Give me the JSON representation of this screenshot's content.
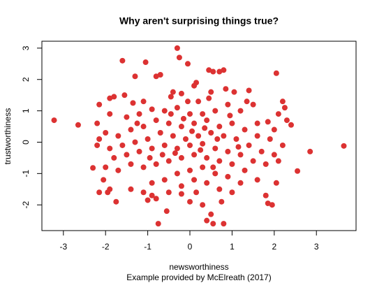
{
  "chart_data": {
    "type": "scatter",
    "title": "Why aren't surprising things true?",
    "xlabel": "newsworthiness",
    "ylabel": "trustworthiness",
    "subtitle": "Example provided by McElreath (2017)",
    "color": "#dc3232",
    "xlim": [
      -3.51,
      3.94
    ],
    "ylim": [
      -2.82,
      3.22
    ],
    "xticks": [
      -3,
      -2,
      -1,
      0,
      1,
      2,
      3
    ],
    "yticks": [
      -2,
      -1,
      0,
      1,
      2,
      3
    ],
    "x": [
      -3.22,
      -2.65,
      3.65,
      2.85,
      2.55,
      -2.3,
      -0.3,
      -0.25,
      -0.05,
      -1.6,
      -1.05,
      0.45,
      0.8,
      0.7,
      2.05,
      0.55,
      -0.7,
      -0.8,
      -1.3,
      -1.8,
      -1.9,
      -1.55,
      -1.1,
      -0.4,
      -0.2,
      0.1,
      0.15,
      0.5,
      0.85,
      1.4,
      1.05,
      2.2,
      2.25,
      2.3,
      2.4,
      2.0,
      1.85,
      1.6,
      1.5,
      1.2,
      0.9,
      0.6,
      0.3,
      0.0,
      -0.3,
      -0.6,
      -0.9,
      -1.2,
      -1.5,
      -1.9,
      -2.15,
      -2.2,
      -2.0,
      -1.7,
      -1.4,
      -1.1,
      -0.8,
      -0.5,
      -0.2,
      0.1,
      0.4,
      0.7,
      1.0,
      1.3,
      1.6,
      1.9,
      2.2,
      2.0,
      1.7,
      1.4,
      1.1,
      0.8,
      0.5,
      0.2,
      -0.1,
      -0.4,
      -0.7,
      -1.0,
      -1.3,
      -1.6,
      -1.9,
      -2.2,
      -2.15,
      -1.8,
      -1.5,
      -1.2,
      -0.9,
      -0.6,
      -0.3,
      0.0,
      0.3,
      0.6,
      0.9,
      1.2,
      1.5,
      1.8,
      2.1,
      2.05,
      1.8,
      1.85,
      1.95,
      1.6,
      1.3,
      1.0,
      0.7,
      0.4,
      0.1,
      -0.2,
      -0.5,
      -0.8,
      -1.1,
      -1.4,
      -1.7,
      -2.0,
      -2.05,
      -1.9,
      -1.75,
      -2.15,
      -1.95,
      -1.4,
      -1.1,
      -0.9,
      -0.6,
      -0.3,
      0.0,
      0.3,
      0.6,
      0.9,
      1.2,
      1.0,
      0.7,
      0.4,
      0.1,
      -0.2,
      -0.5,
      -0.8,
      -1.0,
      -0.9,
      -0.55,
      -0.75,
      0.0,
      0.3,
      0.5,
      0.55,
      0.8,
      0.4,
      0.75,
      -0.2,
      0.15,
      0.2,
      0.45,
      -0.05,
      -0.45,
      0.65,
      -0.15,
      0.25,
      -0.35,
      0.05,
      0.35,
      -0.65,
      1.15,
      -1.25,
      0.95,
      -0.95,
      0.55,
      -0.45,
      1.35,
      -1.35,
      2.1
    ],
    "y": [
      0.7,
      0.55,
      -0.12,
      -0.3,
      -0.92,
      -0.82,
      3.0,
      2.7,
      2.5,
      2.6,
      2.55,
      2.3,
      2.3,
      2.25,
      2.2,
      2.25,
      2.15,
      2.1,
      2.1,
      1.45,
      1.4,
      1.5,
      1.3,
      1.6,
      1.55,
      1.8,
      1.9,
      1.6,
      1.7,
      1.65,
      1.6,
      1.3,
      1.1,
      0.7,
      0.55,
      0.4,
      0.65,
      0.6,
      1.2,
      1.0,
      1.2,
      1.0,
      0.9,
      0.9,
      1.1,
      1.0,
      1.05,
      0.9,
      0.8,
      0.9,
      1.2,
      0.6,
      0.3,
      0.2,
      0.4,
      0.5,
      0.7,
      0.6,
      0.5,
      0.6,
      0.7,
      0.5,
      0.6,
      0.4,
      0.2,
      0.1,
      -0.1,
      -0.4,
      -0.3,
      -0.1,
      0.1,
      0.2,
      0.3,
      0.2,
      0.1,
      0.2,
      0.3,
      0.1,
      0.0,
      -0.1,
      -0.2,
      -0.1,
      0.1,
      -0.5,
      -0.4,
      -0.3,
      -0.2,
      -0.1,
      -0.2,
      -0.1,
      -0.05,
      -0.2,
      -0.3,
      -0.4,
      -0.6,
      -0.7,
      -0.6,
      -1.3,
      -1.7,
      -1.95,
      -2.0,
      -1.2,
      -0.9,
      -0.7,
      -0.6,
      -0.5,
      -0.4,
      -0.5,
      -0.6,
      -0.7,
      -0.8,
      -0.7,
      -0.9,
      -0.8,
      -1.2,
      -1.5,
      -1.9,
      -1.6,
      -1.6,
      -1.5,
      -1.6,
      -1.3,
      -1.2,
      -1.0,
      -0.9,
      -0.8,
      -1.0,
      -1.1,
      -1.3,
      -1.6,
      -1.5,
      -1.3,
      -1.2,
      -1.4,
      -1.6,
      -1.8,
      -1.85,
      -1.7,
      -2.2,
      -2.6,
      -1.9,
      -2.0,
      -2.3,
      -2.6,
      -2.6,
      -2.5,
      -1.9,
      -1.65,
      -1.6,
      1.3,
      1.4,
      1.3,
      1.45,
      0.1,
      0.75,
      -0.25,
      -0.35,
      0.35,
      0.45,
      -0.4,
      -0.15,
      0.6,
      0.85,
      -0.5,
      -0.8,
      0.9,
      1.3,
      1.25,
      0.9
    ]
  }
}
